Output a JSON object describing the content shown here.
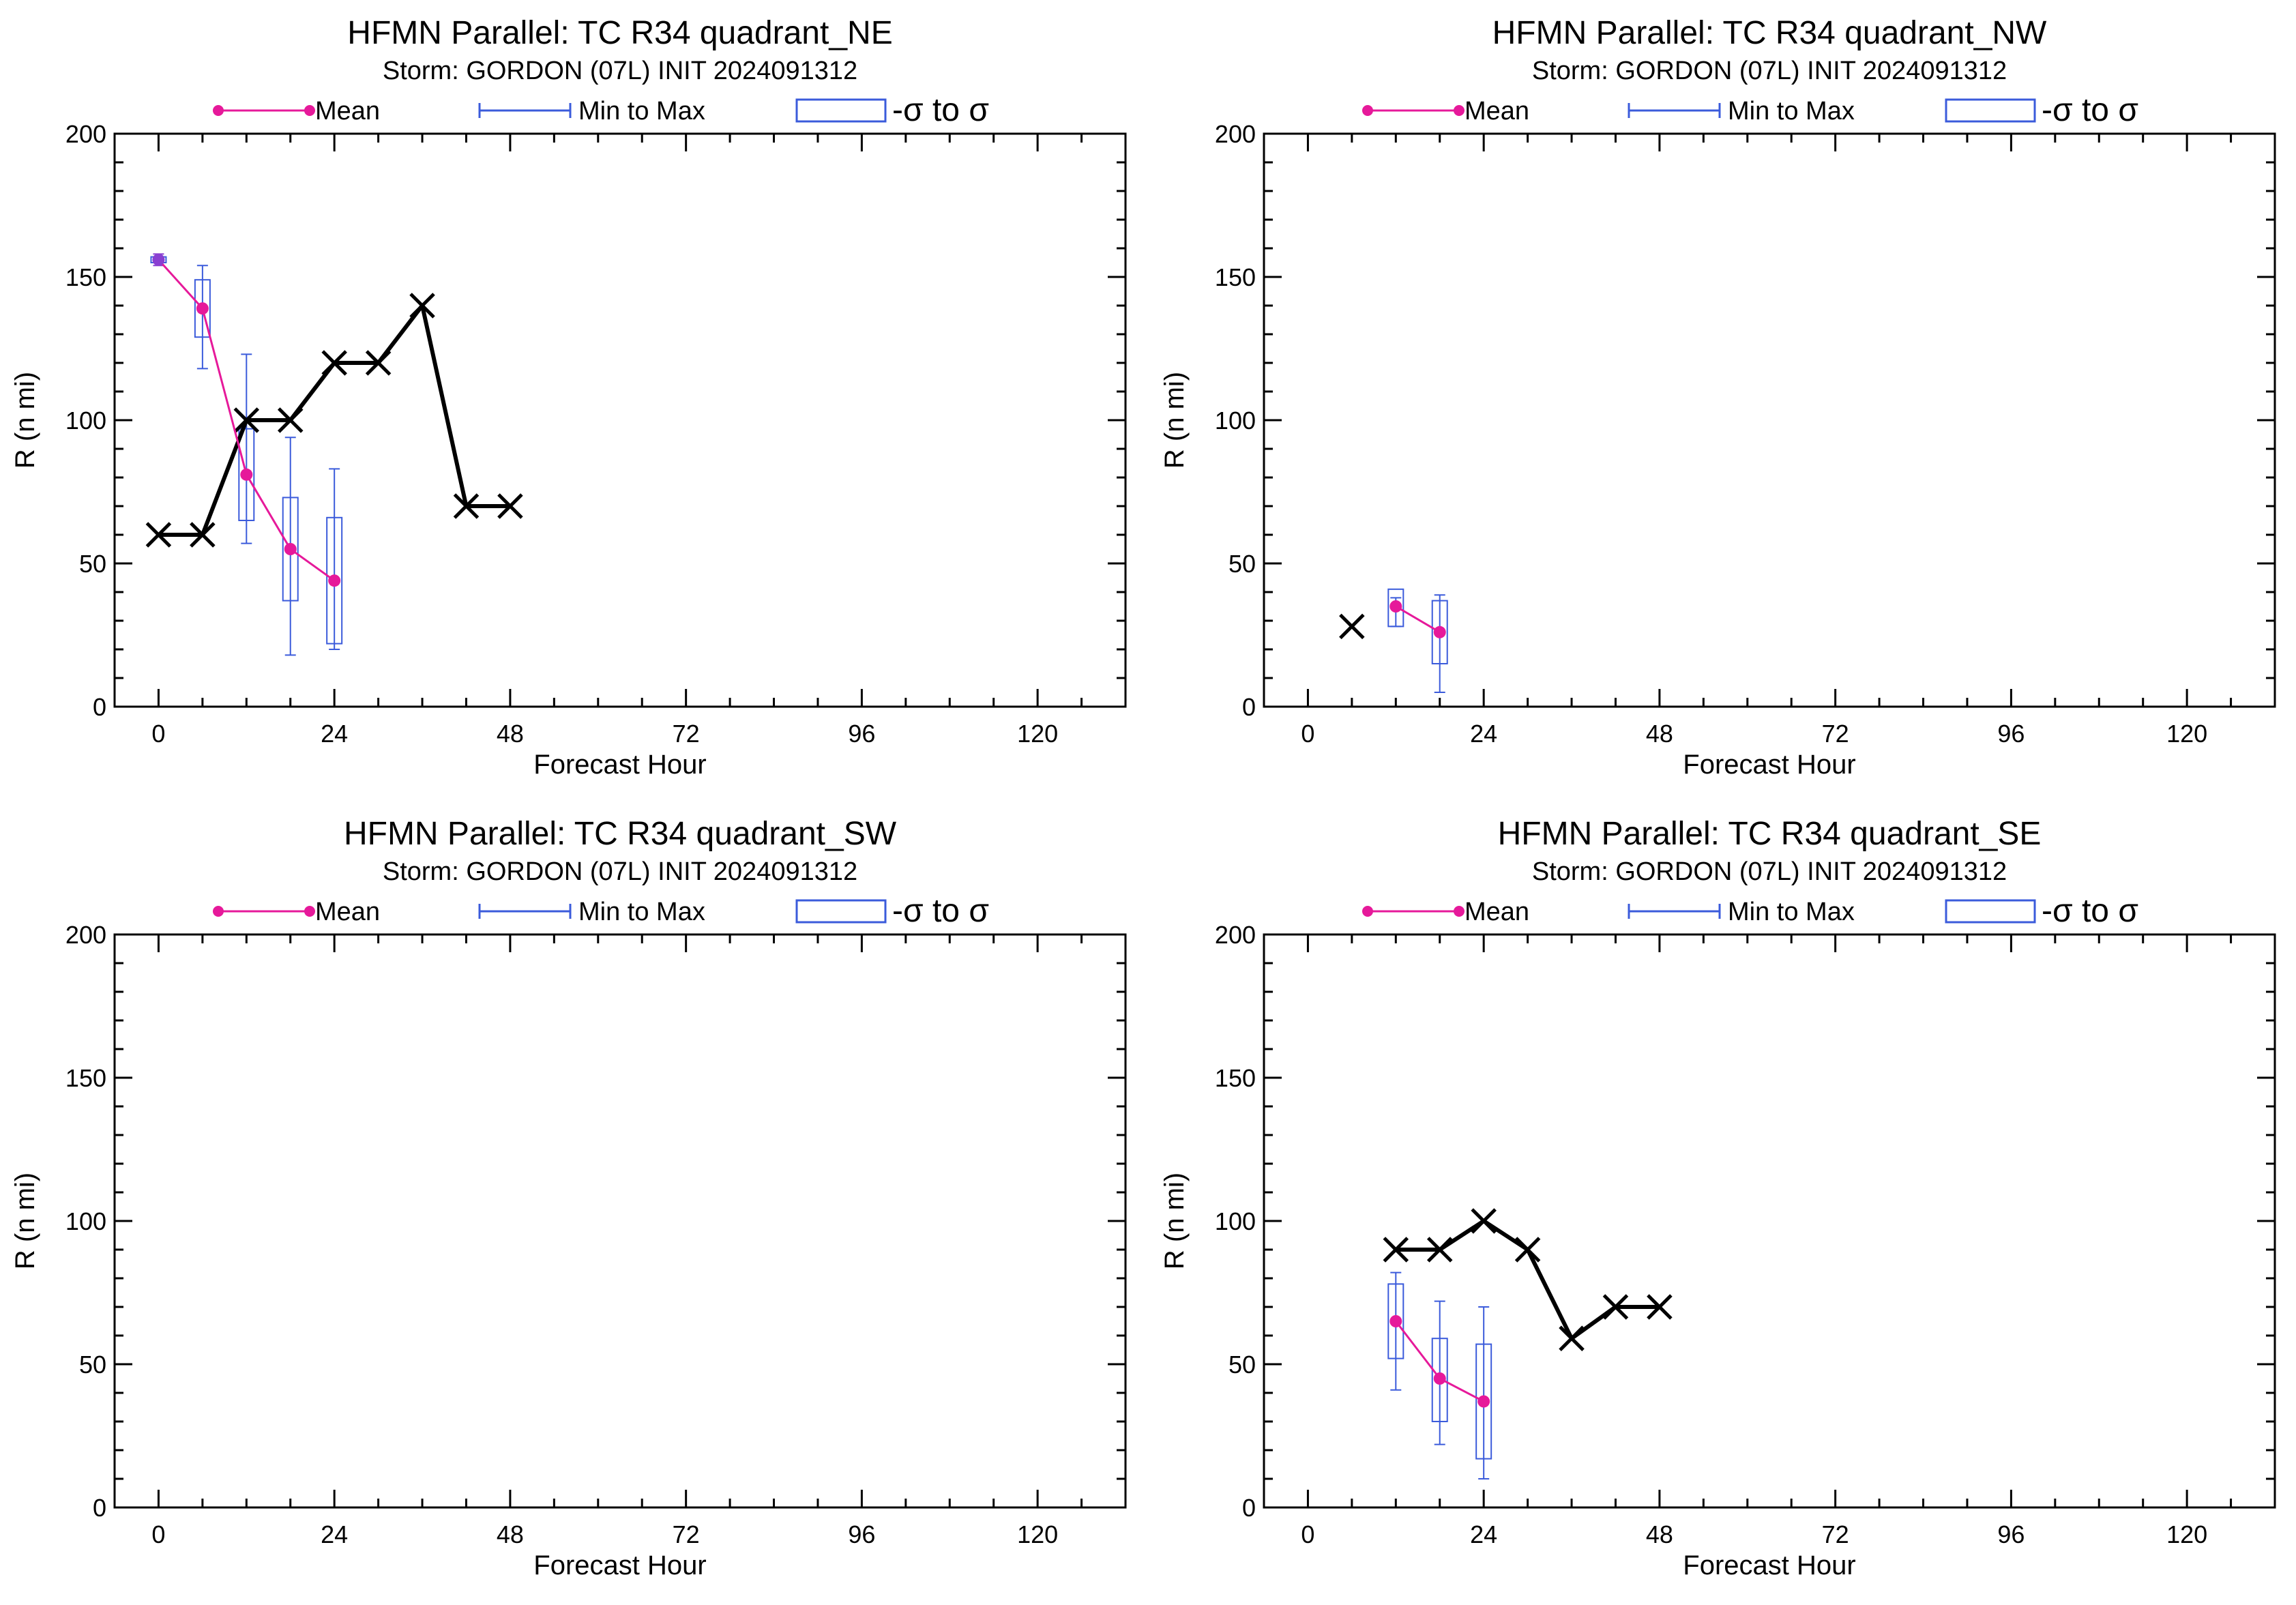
{
  "legend": {
    "mean": "Mean",
    "minmax": "Min to Max",
    "sigma": "-σ to σ"
  },
  "colors": {
    "mean": "#e6199a",
    "range": "#3b5bdb",
    "best_track": "#000000",
    "initial_point": "#8a3fd1"
  },
  "chart_data": [
    {
      "type": "line",
      "title": "HFMN Parallel: TC  R34 quadrant_NE",
      "subtitle": "Storm: GORDON (07L) INIT 2024091312",
      "xlabel": "Forecast Hour",
      "ylabel": "R (n mi)",
      "xlim": [
        -6,
        132
      ],
      "ylim": [
        0,
        200
      ],
      "xticks": [
        0,
        24,
        48,
        72,
        96,
        120
      ],
      "yticks": [
        0,
        50,
        100,
        150,
        200
      ],
      "grid": false,
      "legend_position": "top",
      "series": [
        {
          "name": "Mean",
          "x": [
            0,
            6,
            12,
            18,
            24
          ],
          "values": [
            156,
            139,
            81,
            55,
            44
          ]
        },
        {
          "name": "Min to Max",
          "x": [
            0,
            6,
            12,
            18,
            24
          ],
          "min": [
            154,
            118,
            57,
            18,
            20
          ],
          "max": [
            158,
            154,
            123,
            94,
            83
          ]
        },
        {
          "name": "-σ to σ",
          "x": [
            0,
            6,
            12,
            18,
            24
          ],
          "low": [
            155,
            129,
            65,
            37,
            22
          ],
          "high": [
            157,
            149,
            97,
            73,
            66
          ]
        },
        {
          "x": [
            0,
            6,
            12,
            18,
            24,
            30,
            36,
            42,
            48
          ],
          "values": [
            60,
            60,
            100,
            100,
            120,
            120,
            140,
            70,
            70
          ]
        }
      ]
    },
    {
      "type": "line",
      "title": "HFMN Parallel: TC  R34 quadrant_NW",
      "subtitle": "Storm: GORDON (07L) INIT 2024091312",
      "xlabel": "Forecast Hour",
      "ylabel": "R (n mi)",
      "xlim": [
        -6,
        132
      ],
      "ylim": [
        0,
        200
      ],
      "xticks": [
        0,
        24,
        48,
        72,
        96,
        120
      ],
      "yticks": [
        0,
        50,
        100,
        150,
        200
      ],
      "grid": false,
      "legend_position": "top",
      "series": [
        {
          "name": "Mean",
          "x": [
            12,
            18
          ],
          "values": [
            35,
            26
          ]
        },
        {
          "name": "Min to Max",
          "x": [
            12,
            18
          ],
          "min": [
            28,
            5
          ],
          "max": [
            38,
            39
          ]
        },
        {
          "name": "-σ to σ",
          "x": [
            12,
            18
          ],
          "low": [
            28,
            15
          ],
          "high": [
            41,
            37
          ]
        },
        {
          "x": [
            6
          ],
          "values": [
            28
          ]
        }
      ]
    },
    {
      "type": "line",
      "title": "HFMN Parallel: TC  R34 quadrant_SW",
      "subtitle": "Storm: GORDON (07L) INIT 2024091312",
      "xlabel": "Forecast Hour",
      "ylabel": "R (n mi)",
      "xlim": [
        -6,
        132
      ],
      "ylim": [
        0,
        200
      ],
      "xticks": [
        0,
        24,
        48,
        72,
        96,
        120
      ],
      "yticks": [
        0,
        50,
        100,
        150,
        200
      ],
      "grid": false,
      "legend_position": "top",
      "series": [
        {
          "name": "Mean",
          "x": [],
          "values": []
        },
        {
          "name": "Min to Max",
          "x": [],
          "min": [],
          "max": []
        },
        {
          "name": "-σ to σ",
          "x": [],
          "low": [],
          "high": []
        },
        {
          "x": [],
          "values": []
        }
      ]
    },
    {
      "type": "line",
      "title": "HFMN Parallel: TC  R34 quadrant_SE",
      "subtitle": "Storm: GORDON (07L) INIT 2024091312",
      "xlabel": "Forecast Hour",
      "ylabel": "R (n mi)",
      "xlim": [
        -6,
        132
      ],
      "ylim": [
        0,
        200
      ],
      "xticks": [
        0,
        24,
        48,
        72,
        96,
        120
      ],
      "yticks": [
        0,
        50,
        100,
        150,
        200
      ],
      "grid": false,
      "legend_position": "top",
      "series": [
        {
          "name": "Mean",
          "x": [
            12,
            18,
            24
          ],
          "values": [
            65,
            45,
            37
          ]
        },
        {
          "name": "Min to Max",
          "x": [
            12,
            18,
            24
          ],
          "min": [
            41,
            22,
            10
          ],
          "max": [
            82,
            72,
            70
          ]
        },
        {
          "name": "-σ to σ",
          "x": [
            12,
            18,
            24
          ],
          "low": [
            52,
            30,
            17
          ],
          "high": [
            78,
            59,
            57
          ]
        },
        {
          "x": [
            12,
            18,
            24,
            30,
            36,
            42,
            48
          ],
          "values": [
            90,
            90,
            100,
            90,
            59,
            70,
            70
          ]
        }
      ]
    }
  ]
}
